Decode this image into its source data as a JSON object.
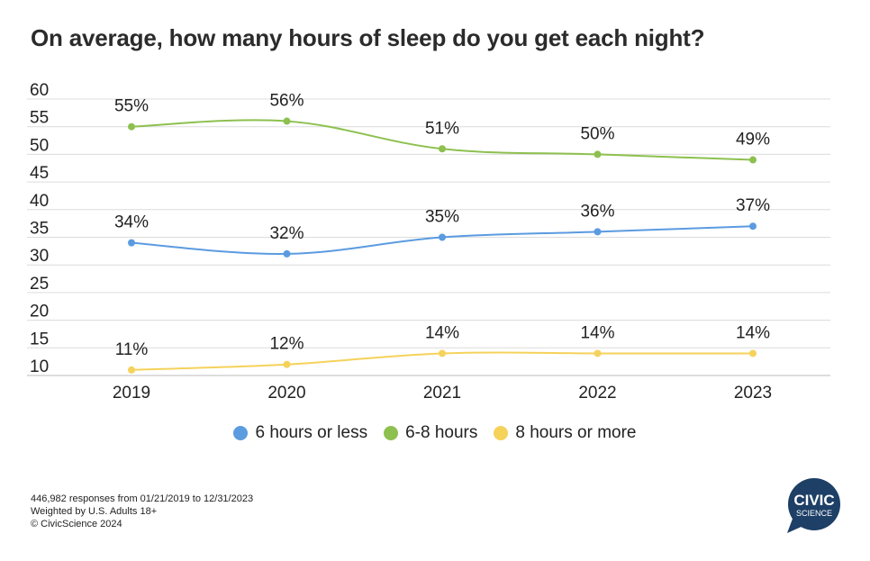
{
  "title": "On average, how many hours of sleep do you get each night?",
  "chart_data": {
    "type": "line",
    "title": "On average, how many hours of sleep do you get each night?",
    "xlabel": "",
    "ylabel": "",
    "categories": [
      "2019",
      "2020",
      "2021",
      "2022",
      "2023"
    ],
    "ylim": [
      10,
      60
    ],
    "yticks": [
      60,
      55,
      50,
      45,
      40,
      35,
      30,
      25,
      20,
      15,
      10
    ],
    "grid": true,
    "legend_position": "bottom",
    "series": [
      {
        "name": "6 hours or less",
        "color": "#5b9be0",
        "values": [
          34,
          32,
          35,
          36,
          37
        ],
        "labels": [
          "34%",
          "32%",
          "35%",
          "36%",
          "37%"
        ]
      },
      {
        "name": "6-8 hours",
        "color": "#8dc04f",
        "values": [
          55,
          56,
          51,
          50,
          49
        ],
        "labels": [
          "55%",
          "56%",
          "51%",
          "50%",
          "49%"
        ]
      },
      {
        "name": "8 hours or more",
        "color": "#f5d25a",
        "values": [
          11,
          12,
          14,
          14,
          14
        ],
        "labels": [
          "11%",
          "12%",
          "14%",
          "14%",
          "14%"
        ]
      }
    ]
  },
  "footnotes": {
    "line1": "446,982 responses from 01/21/2019 to 12/31/2023",
    "line2": "Weighted by U.S. Adults 18+",
    "line3": "© CivicScience 2024"
  },
  "logo": {
    "line1": "CIVIC",
    "line2": "SCIENCE",
    "color": "#1e3f66"
  }
}
